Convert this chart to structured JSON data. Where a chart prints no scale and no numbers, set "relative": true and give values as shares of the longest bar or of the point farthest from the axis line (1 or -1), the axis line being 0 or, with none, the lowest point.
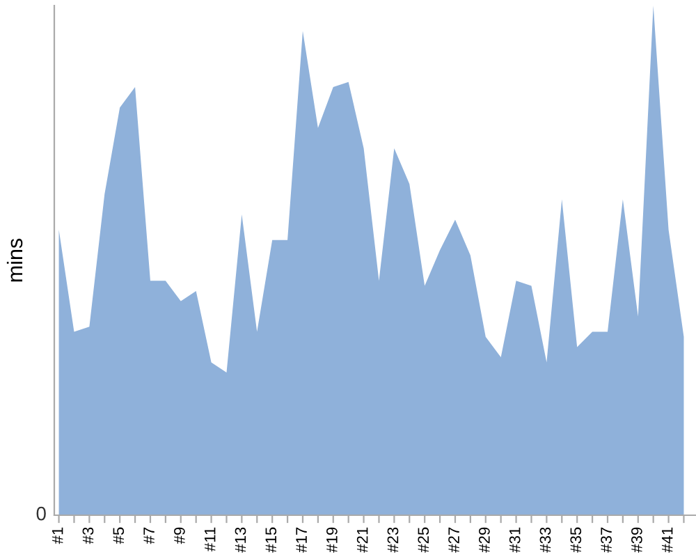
{
  "chart_data": {
    "type": "area",
    "relative": true,
    "ylabel": "mins",
    "color": "#8fb1da",
    "categories": [
      "#1",
      null,
      "#3",
      null,
      "#5",
      null,
      "#7",
      null,
      "#9",
      null,
      "#11",
      null,
      "#13",
      null,
      "#15",
      null,
      "#17",
      null,
      "#19",
      null,
      "#21",
      null,
      "#23",
      null,
      "#25",
      null,
      "#27",
      null,
      "#29",
      null,
      "#31",
      null,
      "#33",
      null,
      "#35",
      null,
      "#37",
      null,
      "#39",
      null,
      "#41",
      null
    ],
    "values": [
      0.56,
      0.36,
      0.37,
      0.63,
      0.8,
      0.84,
      0.46,
      0.46,
      0.42,
      0.44,
      0.3,
      0.28,
      0.59,
      0.36,
      0.54,
      0.54,
      0.95,
      0.76,
      0.84,
      0.85,
      0.72,
      0.46,
      0.72,
      0.65,
      0.45,
      0.52,
      0.58,
      0.51,
      0.35,
      0.31,
      0.46,
      0.45,
      0.3,
      0.62,
      0.33,
      0.36,
      0.36,
      0.62,
      0.39,
      1,
      0.56,
      0.35
    ],
    "annotations": [
      "0"
    ]
  }
}
